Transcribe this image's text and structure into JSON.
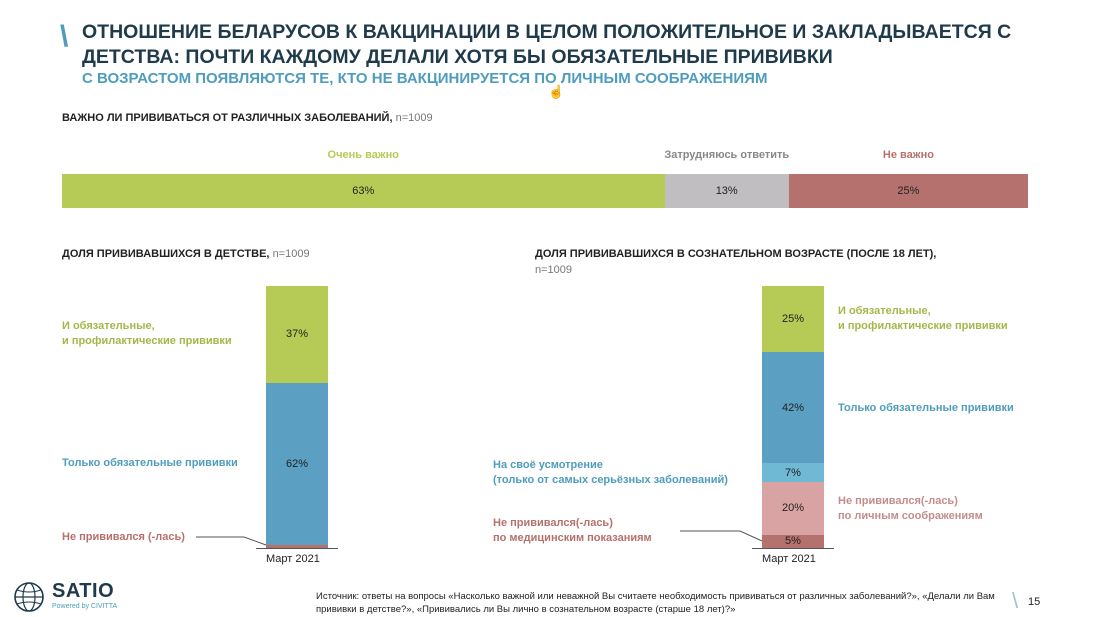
{
  "title_slash": "\\",
  "title": "ОТНОШЕНИЕ БЕЛАРУСОВ К ВАКЦИНАЦИИ В ЦЕЛОМ ПОЛОЖИТЕЛЬНОЕ И ЗАКЛАДЫВАЕТСЯ С ДЕТСТВА: ПОЧТИ КАЖДОМУ ДЕЛАЛИ ХОТЯ БЫ ОБЯЗАТЕЛЬНЫЕ ПРИВИВКИ",
  "subtitle": "С ВОЗРАСТОМ ПОЯВЛЯЮТСЯ ТЕ, КТО НЕ ВАКЦИНИРУЕТСЯ ПО ЛИЧНЫМ СООБРАЖЕНИЯМ",
  "colors": {
    "green": "#b5cb56",
    "grey": "#c0bec0",
    "red": "#b5716d",
    "blue": "#5b9fc2",
    "light_blue": "#6fb9d4",
    "pink": "#d9a3a3",
    "dark_red": "#b5716d"
  },
  "chart_data": [
    {
      "type": "bar",
      "orientation": "horizontal-stacked",
      "title": "ВАЖНО ЛИ ПРИВИВАТЬСЯ ОТ РАЗЛИЧНЫХ ЗАБОЛЕВАНИЙ,",
      "n": "n=1009",
      "series": [
        {
          "name": "Очень важно",
          "values": [
            63
          ],
          "label": "63%",
          "color": "#b5cb56"
        },
        {
          "name": "Затрудняюсь ответить",
          "values": [
            13
          ],
          "label": "13%",
          "color": "#c0bec0"
        },
        {
          "name": "Не важно",
          "values": [
            25
          ],
          "label": "25%",
          "color": "#b5716d"
        }
      ]
    },
    {
      "type": "bar",
      "orientation": "vertical-stacked",
      "title": "ДОЛЯ ПРИВИВАВШИХСЯ В ДЕТСТВЕ,",
      "n": "n=1009",
      "categories": [
        "Март 2021"
      ],
      "series": [
        {
          "name": "И обязательные,\nи профилактические прививки",
          "values": [
            37
          ],
          "label": "37%",
          "color": "#b5cb56"
        },
        {
          "name": "Только обязательные прививки",
          "values": [
            62
          ],
          "label": "62%",
          "color": "#5b9fc2"
        },
        {
          "name": "Не прививался (-лась)",
          "values": [
            1
          ],
          "label": "",
          "color": "#b5716d"
        }
      ]
    },
    {
      "type": "bar",
      "orientation": "vertical-stacked",
      "title": "ДОЛЯ ПРИВИВАВШИХСЯ В СОЗНАТЕЛЬНОМ ВОЗРАСТЕ (ПОСЛЕ 18 ЛЕТ),",
      "n": "n=1009",
      "categories": [
        "Март 2021"
      ],
      "series": [
        {
          "name": "И обязательные,\nи профилактические прививки",
          "values": [
            25
          ],
          "label": "25%",
          "color": "#b5cb56"
        },
        {
          "name": "Только обязательные прививки",
          "values": [
            42
          ],
          "label": "42%",
          "color": "#5b9fc2"
        },
        {
          "name": "На своё усмотрение\n(только от самых серьёзных заболеваний)",
          "values": [
            7
          ],
          "label": "7%",
          "color": "#6fb9d4"
        },
        {
          "name": "Не прививался(-лась)\nпо личным соображениям",
          "values": [
            20
          ],
          "label": "20%",
          "color": "#d9a3a3"
        },
        {
          "name": "Не прививался(-лась)\nпо медицинским показаниям",
          "values": [
            5
          ],
          "label": "5%",
          "color": "#b5716d"
        }
      ]
    }
  ],
  "source": "Источник: ответы на вопросы «Насколько важной или неважной Вы считаете необходимость прививаться от различных заболеваний?», «Делали ли Вам прививки в детстве?», «Прививались ли Вы лично в сознательном возрасте (старше 18 лет)?»",
  "page_slash": "\\",
  "page_number": "15",
  "logo": {
    "name": "SATIO",
    "sub": "Powered by CIVITTA",
    "icon": "globe-icon"
  },
  "cursor_icon": "hand-cursor-icon"
}
